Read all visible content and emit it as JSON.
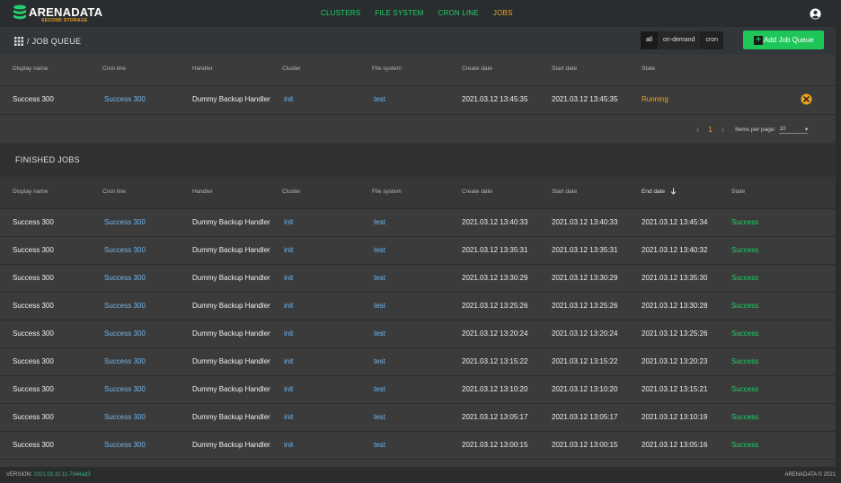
{
  "brand": {
    "name": "ARENADATA",
    "tagline": "SECOND STORAGE"
  },
  "nav": [
    {
      "label": "CLUSTERS",
      "active": false
    },
    {
      "label": "FILE SYSTEM",
      "active": false
    },
    {
      "label": "CRON LINE",
      "active": false
    },
    {
      "label": "JOBS",
      "active": true
    }
  ],
  "job_queue": {
    "title": "/ JOB QUEUE",
    "filters": [
      "all",
      "on-demand",
      "cron"
    ],
    "selected_filter": "all",
    "add_button_label": "Add Job Queue",
    "columns": [
      "Display name",
      "Cron line",
      "Handler",
      "Cluster",
      "File system",
      "Create date",
      "Start date",
      "State"
    ],
    "rows": [
      {
        "display_name": "Success 300",
        "cron_line": "Success 300",
        "handler": "Dummy Backup Handler",
        "cluster": "init",
        "file_system": "test",
        "create_date": "2021.03.12 13:45:35",
        "start_date": "2021.03.12 13:45:35",
        "state": "Running"
      }
    ],
    "pager": {
      "page": "1",
      "items_per_page_label": "Items per page:",
      "items_per_page": "10"
    }
  },
  "finished_jobs": {
    "title": "FINISHED JOBS",
    "columns": [
      "Display name",
      "Cron line",
      "Handler",
      "Cluster",
      "File system",
      "Create date",
      "Start date",
      "End date",
      "State"
    ],
    "rows": [
      {
        "display_name": "Success 300",
        "cron_line": "Success 300",
        "handler": "Dummy Backup Handler",
        "cluster": "init",
        "file_system": "test",
        "create_date": "2021.03.12 13:40:33",
        "start_date": "2021.03.12 13:40:33",
        "end_date": "2021.03.12 13:45:34",
        "state": "Success"
      },
      {
        "display_name": "Success 300",
        "cron_line": "Success 300",
        "handler": "Dummy Backup Handler",
        "cluster": "init",
        "file_system": "test",
        "create_date": "2021.03.12 13:35:31",
        "start_date": "2021.03.12 13:35:31",
        "end_date": "2021.03.12 13:40:32",
        "state": "Success"
      },
      {
        "display_name": "Success 300",
        "cron_line": "Success 300",
        "handler": "Dummy Backup Handler",
        "cluster": "init",
        "file_system": "test",
        "create_date": "2021.03.12 13:30:29",
        "start_date": "2021.03.12 13:30:29",
        "end_date": "2021.03.12 13:35:30",
        "state": "Success"
      },
      {
        "display_name": "Success 300",
        "cron_line": "Success 300",
        "handler": "Dummy Backup Handler",
        "cluster": "init",
        "file_system": "test",
        "create_date": "2021.03.12 13:25:26",
        "start_date": "2021.03.12 13:25:26",
        "end_date": "2021.03.12 13:30:28",
        "state": "Success"
      },
      {
        "display_name": "Success 300",
        "cron_line": "Success 300",
        "handler": "Dummy Backup Handler",
        "cluster": "init",
        "file_system": "test",
        "create_date": "2021.03.12 13:20:24",
        "start_date": "2021.03.12 13:20:24",
        "end_date": "2021.03.12 13:25:26",
        "state": "Success"
      },
      {
        "display_name": "Success 300",
        "cron_line": "Success 300",
        "handler": "Dummy Backup Handler",
        "cluster": "init",
        "file_system": "test",
        "create_date": "2021.03.12 13:15:22",
        "start_date": "2021.03.12 13:15:22",
        "end_date": "2021.03.12 13:20:23",
        "state": "Success"
      },
      {
        "display_name": "Success 300",
        "cron_line": "Success 300",
        "handler": "Dummy Backup Handler",
        "cluster": "init",
        "file_system": "test",
        "create_date": "2021.03.12 13:10:20",
        "start_date": "2021.03.12 13:10:20",
        "end_date": "2021.03.12 13:15:21",
        "state": "Success"
      },
      {
        "display_name": "Success 300",
        "cron_line": "Success 300",
        "handler": "Dummy Backup Handler",
        "cluster": "init",
        "file_system": "test",
        "create_date": "2021.03.12 13:05:17",
        "start_date": "2021.03.12 13:05:17",
        "end_date": "2021.03.12 13:10:19",
        "state": "Success"
      },
      {
        "display_name": "Success 300",
        "cron_line": "Success 300",
        "handler": "Dummy Backup Handler",
        "cluster": "init",
        "file_system": "test",
        "create_date": "2021.03.12 13:00:15",
        "start_date": "2021.03.12 13:00:15",
        "end_date": "2021.03.12 13:05:16",
        "state": "Success"
      }
    ]
  },
  "footer": {
    "version_label": "VERSION:",
    "version": "2021.03.10.11-7944ad3",
    "copyright": "ARENADATA © 2021"
  },
  "colors": {
    "accent": "#1fd16a",
    "active_nav": "#f0a21c",
    "link": "#6fb6ef",
    "running": "#f0a21c",
    "success": "#1fd16a"
  },
  "icons": [
    "user-icon",
    "grid-icon",
    "plus-icon",
    "cancel-icon",
    "chevron-left-icon",
    "chevron-right-icon",
    "caret-down-icon",
    "arrow-down-icon"
  ]
}
